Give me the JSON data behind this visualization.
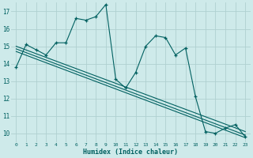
{
  "xlabel": "Humidex (Indice chaleur)",
  "bg_color": "#ceeaea",
  "grid_color": "#b0d0d0",
  "line_color": "#006060",
  "xlim": [
    -0.5,
    23.5
  ],
  "ylim": [
    9.5,
    17.5
  ],
  "yticks": [
    10,
    11,
    12,
    13,
    14,
    15,
    16,
    17
  ],
  "xticks": [
    0,
    1,
    2,
    3,
    4,
    5,
    6,
    7,
    8,
    9,
    10,
    11,
    12,
    13,
    14,
    15,
    16,
    17,
    18,
    19,
    20,
    21,
    22,
    23
  ],
  "series1_x": [
    0,
    1,
    2,
    3,
    4,
    5,
    6,
    7,
    8,
    9,
    10,
    11,
    12,
    13,
    14,
    15,
    16,
    17,
    18,
    19,
    20,
    21,
    22,
    23
  ],
  "series1_y": [
    13.8,
    15.1,
    14.8,
    14.5,
    15.2,
    15.2,
    16.6,
    16.5,
    16.7,
    17.4,
    13.1,
    12.6,
    13.5,
    15.0,
    15.6,
    15.5,
    14.5,
    14.9,
    12.1,
    10.1,
    10.0,
    10.3,
    10.5,
    9.8
  ],
  "series2_x": [
    0,
    23
  ],
  "series2_y": [
    15.0,
    10.1
  ],
  "series3_x": [
    0,
    23
  ],
  "series3_y": [
    14.85,
    9.9
  ],
  "series4_x": [
    0,
    23
  ],
  "series4_y": [
    14.7,
    9.75
  ]
}
